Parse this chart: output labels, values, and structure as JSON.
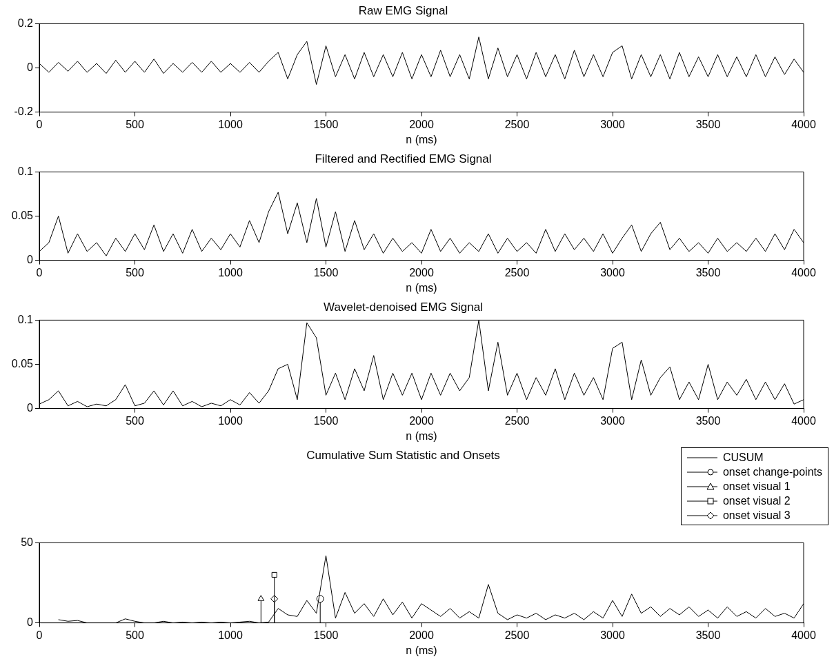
{
  "chart_data": [
    {
      "type": "line",
      "title": "Raw EMG Signal",
      "xlabel": "n (ms)",
      "xlim": [
        0,
        4000
      ],
      "xticks": [
        0,
        500,
        1000,
        1500,
        2000,
        2500,
        3000,
        3500,
        4000
      ],
      "ylim": [
        -0.2,
        0.2
      ],
      "yticks": [
        -0.2,
        0,
        0.2
      ],
      "grid": false,
      "legend": false,
      "marker": "none",
      "series": [
        {
          "color": "#000000",
          "x": [
            0,
            50,
            100,
            150,
            200,
            250,
            300,
            350,
            400,
            450,
            500,
            550,
            600,
            650,
            700,
            750,
            800,
            850,
            900,
            950,
            1000,
            1050,
            1100,
            1150,
            1200,
            1250,
            1300,
            1350,
            1400,
            1450,
            1500,
            1550,
            1600,
            1650,
            1700,
            1750,
            1800,
            1850,
            1900,
            1950,
            2000,
            2050,
            2100,
            2150,
            2200,
            2250,
            2300,
            2350,
            2400,
            2450,
            2500,
            2550,
            2600,
            2650,
            2700,
            2750,
            2800,
            2850,
            2900,
            2950,
            3000,
            3050,
            3100,
            3150,
            3200,
            3250,
            3300,
            3350,
            3400,
            3450,
            3500,
            3550,
            3600,
            3650,
            3700,
            3750,
            3800,
            3850,
            3900,
            3950,
            4000
          ],
          "values": [
            0.02,
            -0.02,
            0.025,
            -0.015,
            0.03,
            -0.02,
            0.02,
            -0.025,
            0.035,
            -0.02,
            0.03,
            -0.02,
            0.04,
            -0.025,
            0.02,
            -0.02,
            0.025,
            -0.02,
            0.03,
            -0.02,
            0.02,
            -0.02,
            0.025,
            -0.02,
            0.03,
            0.07,
            -0.05,
            0.06,
            0.12,
            -0.075,
            0.1,
            -0.04,
            0.06,
            -0.05,
            0.07,
            -0.04,
            0.06,
            -0.04,
            0.07,
            -0.05,
            0.06,
            -0.04,
            0.08,
            -0.04,
            0.06,
            -0.05,
            0.14,
            -0.05,
            0.09,
            -0.04,
            0.06,
            -0.05,
            0.07,
            -0.04,
            0.06,
            -0.05,
            0.08,
            -0.04,
            0.06,
            -0.04,
            0.07,
            0.1,
            -0.05,
            0.06,
            -0.04,
            0.06,
            -0.05,
            0.07,
            -0.04,
            0.05,
            -0.04,
            0.06,
            -0.04,
            0.05,
            -0.04,
            0.06,
            -0.04,
            0.05,
            -0.03,
            0.04,
            -0.02
          ]
        }
      ]
    },
    {
      "type": "line",
      "title": "Filtered and Rectified EMG Signal",
      "xlabel": "n (ms)",
      "xlim": [
        0,
        4000
      ],
      "xticks": [
        0,
        500,
        1000,
        1500,
        2000,
        2500,
        3000,
        3500,
        4000
      ],
      "ylim": [
        0,
        0.1
      ],
      "yticks": [
        0,
        0.05,
        0.1
      ],
      "grid": false,
      "legend": false,
      "marker": "none",
      "series": [
        {
          "color": "#000000",
          "x": [
            0,
            50,
            100,
            150,
            200,
            250,
            300,
            350,
            400,
            450,
            500,
            550,
            600,
            650,
            700,
            750,
            800,
            850,
            900,
            950,
            1000,
            1050,
            1100,
            1150,
            1200,
            1250,
            1300,
            1350,
            1400,
            1450,
            1500,
            1550,
            1600,
            1650,
            1700,
            1750,
            1800,
            1850,
            1900,
            1950,
            2000,
            2050,
            2100,
            2150,
            2200,
            2250,
            2300,
            2350,
            2400,
            2450,
            2500,
            2550,
            2600,
            2650,
            2700,
            2750,
            2800,
            2850,
            2900,
            2950,
            3000,
            3050,
            3100,
            3150,
            3200,
            3250,
            3300,
            3350,
            3400,
            3450,
            3500,
            3550,
            3600,
            3650,
            3700,
            3750,
            3800,
            3850,
            3900,
            3950,
            4000
          ],
          "values": [
            0.01,
            0.02,
            0.05,
            0.008,
            0.03,
            0.01,
            0.02,
            0.005,
            0.025,
            0.01,
            0.03,
            0.012,
            0.04,
            0.01,
            0.03,
            0.008,
            0.035,
            0.01,
            0.025,
            0.012,
            0.03,
            0.015,
            0.045,
            0.02,
            0.055,
            0.077,
            0.03,
            0.065,
            0.02,
            0.07,
            0.015,
            0.055,
            0.01,
            0.045,
            0.012,
            0.03,
            0.008,
            0.025,
            0.01,
            0.02,
            0.008,
            0.035,
            0.01,
            0.025,
            0.008,
            0.02,
            0.01,
            0.03,
            0.008,
            0.025,
            0.01,
            0.02,
            0.008,
            0.035,
            0.01,
            0.03,
            0.012,
            0.025,
            0.01,
            0.03,
            0.008,
            0.025,
            0.04,
            0.01,
            0.03,
            0.043,
            0.012,
            0.025,
            0.01,
            0.02,
            0.008,
            0.025,
            0.01,
            0.02,
            0.01,
            0.025,
            0.01,
            0.03,
            0.012,
            0.035,
            0.02
          ]
        }
      ]
    },
    {
      "type": "line",
      "title": "Wavelet-denoised EMG Signal",
      "xlabel": "n (ms)",
      "xlim": [
        0,
        4000
      ],
      "xticks": [
        500,
        1000,
        1500,
        2000,
        2500,
        3000,
        3500,
        4000
      ],
      "ylim": [
        0,
        0.1
      ],
      "yticks": [
        0,
        0.05,
        0.1
      ],
      "grid": false,
      "legend": false,
      "marker": "none",
      "series": [
        {
          "color": "#000000",
          "x": [
            0,
            50,
            100,
            150,
            200,
            250,
            300,
            350,
            400,
            450,
            500,
            550,
            600,
            650,
            700,
            750,
            800,
            850,
            900,
            950,
            1000,
            1050,
            1100,
            1150,
            1200,
            1250,
            1300,
            1350,
            1400,
            1450,
            1500,
            1550,
            1600,
            1650,
            1700,
            1750,
            1800,
            1850,
            1900,
            1950,
            2000,
            2050,
            2100,
            2150,
            2200,
            2250,
            2300,
            2350,
            2400,
            2450,
            2500,
            2550,
            2600,
            2650,
            2700,
            2750,
            2800,
            2850,
            2900,
            2950,
            3000,
            3050,
            3100,
            3150,
            3200,
            3250,
            3300,
            3350,
            3400,
            3450,
            3500,
            3550,
            3600,
            3650,
            3700,
            3750,
            3800,
            3850,
            3900,
            3950,
            4000
          ],
          "values": [
            0.005,
            0.01,
            0.02,
            0.003,
            0.008,
            0.002,
            0.005,
            0.003,
            0.01,
            0.027,
            0.003,
            0.006,
            0.02,
            0.004,
            0.02,
            0.003,
            0.008,
            0.002,
            0.006,
            0.003,
            0.01,
            0.004,
            0.018,
            0.006,
            0.02,
            0.045,
            0.05,
            0.01,
            0.097,
            0.08,
            0.015,
            0.04,
            0.01,
            0.045,
            0.02,
            0.06,
            0.01,
            0.04,
            0.015,
            0.04,
            0.01,
            0.04,
            0.015,
            0.04,
            0.02,
            0.035,
            0.1,
            0.02,
            0.075,
            0.015,
            0.04,
            0.01,
            0.035,
            0.015,
            0.045,
            0.01,
            0.04,
            0.015,
            0.035,
            0.01,
            0.068,
            0.075,
            0.01,
            0.055,
            0.015,
            0.035,
            0.047,
            0.01,
            0.03,
            0.01,
            0.05,
            0.01,
            0.03,
            0.015,
            0.033,
            0.01,
            0.03,
            0.01,
            0.028,
            0.005,
            0.01
          ]
        }
      ]
    },
    {
      "type": "line",
      "title": "Cumulative Sum Statistic and Onsets",
      "xlabel": "n (ms)",
      "xlim": [
        0,
        4000
      ],
      "xticks": [
        0,
        500,
        1000,
        1500,
        2000,
        2500,
        3000,
        3500,
        4000
      ],
      "ylim": [
        0,
        50
      ],
      "yticks": [
        0,
        50
      ],
      "grid": false,
      "legend": "top right",
      "series": [
        {
          "name": "CUSUM",
          "color": "#000000",
          "marker": "none",
          "x": [
            100,
            150,
            200,
            250,
            300,
            350,
            400,
            450,
            500,
            550,
            600,
            650,
            700,
            750,
            800,
            850,
            900,
            950,
            1000,
            1050,
            1100,
            1150,
            1200,
            1250,
            1300,
            1350,
            1400,
            1450,
            1500,
            1550,
            1600,
            1650,
            1700,
            1750,
            1800,
            1850,
            1900,
            1950,
            2000,
            2050,
            2100,
            2150,
            2200,
            2250,
            2300,
            2350,
            2400,
            2450,
            2500,
            2550,
            2600,
            2650,
            2700,
            2750,
            2800,
            2850,
            2900,
            2950,
            3000,
            3050,
            3100,
            3150,
            3200,
            3250,
            3300,
            3350,
            3400,
            3450,
            3500,
            3550,
            3600,
            3650,
            3700,
            3750,
            3800,
            3850,
            3900,
            3950,
            4000
          ],
          "values": [
            2,
            1,
            1.5,
            0,
            0,
            0,
            0,
            2.5,
            1,
            0,
            0,
            1,
            0,
            0.5,
            0,
            0.5,
            0,
            0.5,
            0,
            0.5,
            1,
            0,
            0.5,
            9,
            5,
            4,
            14,
            6,
            42,
            3,
            19,
            6,
            12,
            4,
            15,
            5,
            13,
            3,
            12,
            8,
            4,
            9,
            3,
            7,
            3,
            24,
            6,
            2,
            5,
            3,
            6,
            2,
            5,
            3,
            6,
            2,
            7,
            3,
            14,
            4,
            18,
            6,
            10,
            4,
            9,
            5,
            10,
            4,
            8,
            3,
            10,
            4,
            7,
            3,
            9,
            4,
            6,
            3,
            12
          ]
        },
        {
          "type": "lollipop",
          "name": "onset change-points",
          "color": "#000000",
          "marker": "circle",
          "x": [
            1470
          ],
          "values": [
            15
          ]
        },
        {
          "type": "lollipop",
          "name": "onset visual 1",
          "color": "#000000",
          "marker": "triangle",
          "x": [
            1160
          ],
          "values": [
            15
          ]
        },
        {
          "type": "lollipop",
          "name": "onset visual 2",
          "color": "#000000",
          "marker": "square",
          "x": [
            1230
          ],
          "values": [
            30
          ]
        },
        {
          "type": "lollipop",
          "name": "onset visual 3",
          "color": "#000000",
          "marker": "diamond",
          "x": [
            1230
          ],
          "values": [
            15
          ]
        }
      ]
    }
  ]
}
